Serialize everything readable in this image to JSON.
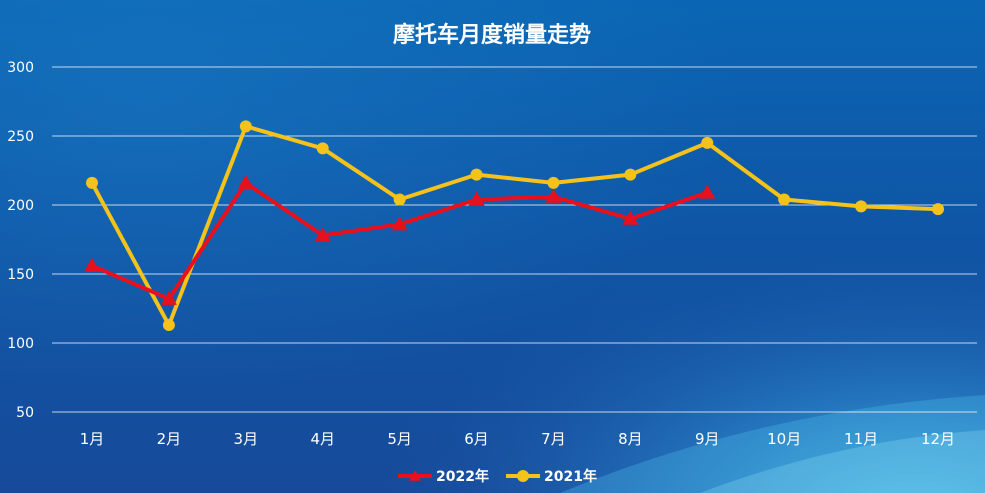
{
  "chart_data": {
    "type": "line",
    "title": "摩托车月度销量走势",
    "categories": [
      "1月",
      "2月",
      "3月",
      "4月",
      "5月",
      "6月",
      "7月",
      "8月",
      "9月",
      "10月",
      "11月",
      "12月"
    ],
    "ylim": [
      50,
      300
    ],
    "yticks": [
      50,
      100,
      150,
      200,
      250,
      300
    ],
    "grid": true,
    "legend_position": "bottom",
    "series": [
      {
        "name": "2022年",
        "color": "#e8101c",
        "marker": "triangle",
        "values": [
          156,
          132,
          216,
          178,
          186,
          204,
          206,
          190,
          209,
          null,
          null,
          null
        ]
      },
      {
        "name": "2021年",
        "color": "#f4c21a",
        "marker": "circle",
        "values": [
          216,
          113,
          257,
          241,
          204,
          222,
          216,
          222,
          245,
          204,
          199,
          197
        ]
      }
    ]
  }
}
